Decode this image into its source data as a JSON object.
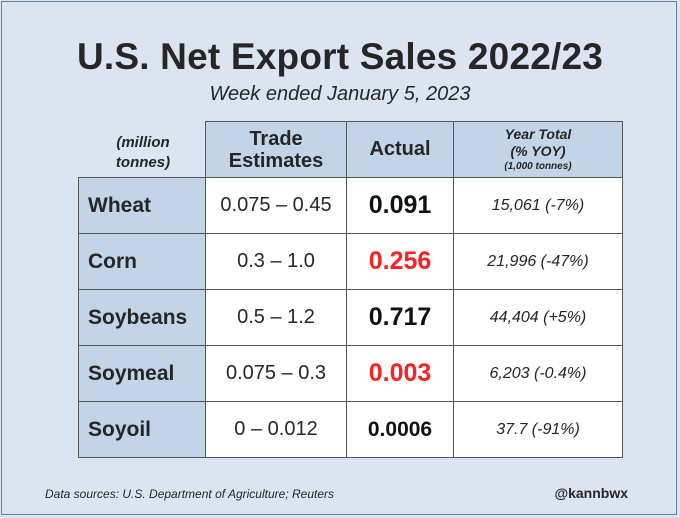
{
  "title": "U.S. Net Export Sales 2022/23",
  "subtitle": "Week ended January 5, 2023",
  "units_label": "(million tonnes)",
  "columns": {
    "trade": "Trade Estimates",
    "actual": "Actual",
    "year_line1": "Year Total",
    "year_line2": "(% YOY)",
    "year_line3": "(1,000 tonnes)"
  },
  "rows": [
    {
      "name": "Wheat",
      "estimate": "0.075 – 0.45",
      "actual": "0.091",
      "year_total": "15,061 (-7%)"
    },
    {
      "name": "Corn",
      "estimate": "0.3 – 1.0",
      "actual": "0.256",
      "year_total": "21,996 (-47%)"
    },
    {
      "name": "Soybeans",
      "estimate": "0.5 – 1.2",
      "actual": "0.717",
      "year_total": "44,404 (+5%)"
    },
    {
      "name": "Soymeal",
      "estimate": "0.075 – 0.3",
      "actual": "0.003",
      "year_total": "6,203 (-0.4%)"
    },
    {
      "name": "Soyoil",
      "estimate": "0 – 0.012",
      "actual": "0.0006",
      "year_total": "37.7 (-91%)"
    }
  ],
  "colors": {
    "background": "#dbe5f1",
    "header_fill": "#c3d3e8",
    "highlight_red": "#ff1f1f"
  },
  "source": "Data sources: U.S. Department of Agriculture; Reuters",
  "handle": "@kannbwx"
}
